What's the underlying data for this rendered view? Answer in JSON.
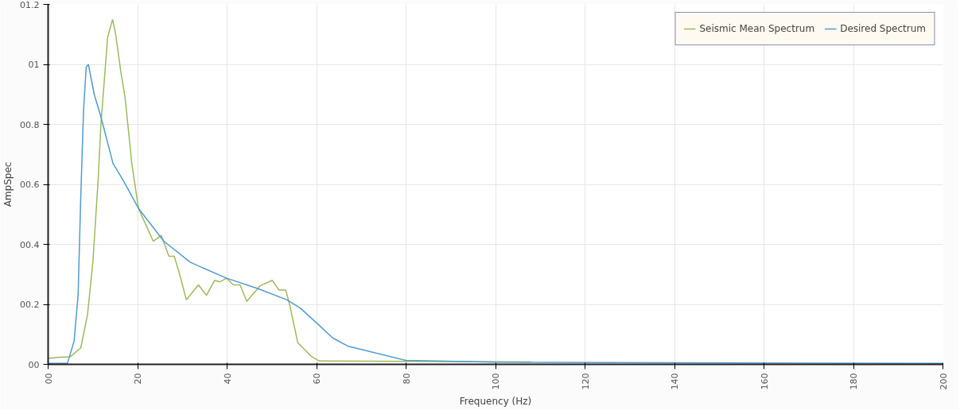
{
  "chart_data": {
    "type": "line",
    "xlabel": "Frequency (Hz)",
    "ylabel": "AmpSpec",
    "xlim": [
      0,
      200
    ],
    "ylim": [
      0,
      1.2
    ],
    "xticks": [
      {
        "value": 0,
        "label": "00"
      },
      20,
      40,
      60,
      80,
      100,
      120,
      140,
      160,
      180,
      200
    ],
    "yticks": [
      {
        "value": 0,
        "label": "00"
      },
      {
        "value": 0.2,
        "label": "00.2"
      },
      {
        "value": 0.4,
        "label": "00.4"
      },
      {
        "value": 0.6,
        "label": "00.6"
      },
      {
        "value": 0.8,
        "label": "00.8"
      },
      {
        "value": 1.0,
        "label": "01"
      },
      {
        "value": 1.2,
        "label": "01.2"
      }
    ],
    "grid": true,
    "legend": "top right",
    "marker": "none",
    "line_style": "solid",
    "series": [
      {
        "name": "Seismic Mean Spectrum",
        "color": "#9bbb59",
        "x": [
          0,
          2.8,
          4.9,
          7.3,
          8.8,
          10,
          11.2,
          11.8,
          13.3,
          14.4,
          15.1,
          16.3,
          17.2,
          18.7,
          20.2,
          22,
          23.5,
          25.3,
          27,
          28.2,
          29.4,
          30.9,
          33.6,
          35.4,
          37.2,
          38.4,
          39.9,
          41.4,
          42.9,
          44.4,
          47.4,
          50.1,
          51.6,
          53.1,
          54,
          55.8,
          58.8,
          60.6,
          80,
          108
        ],
        "values": [
          0.02,
          0.024,
          0.025,
          0.055,
          0.165,
          0.34,
          0.62,
          0.8,
          1.09,
          1.15,
          1.1,
          0.97,
          0.89,
          0.67,
          0.52,
          0.46,
          0.41,
          0.43,
          0.36,
          0.36,
          0.3,
          0.215,
          0.265,
          0.23,
          0.28,
          0.275,
          0.287,
          0.265,
          0.265,
          0.21,
          0.262,
          0.28,
          0.248,
          0.248,
          0.198,
          0.072,
          0.027,
          0.011,
          0.01,
          0.008
        ]
      },
      {
        "name": "Desired Spectrum",
        "color": "#4f9bd1",
        "x": [
          0,
          4.3,
          5.8,
          6.7,
          7.3,
          7.9,
          8.5,
          9.0,
          10.3,
          11.8,
          14.5,
          16.9,
          20.2,
          25.9,
          31.8,
          39.9,
          46.8,
          53.4,
          56.4,
          60,
          63.6,
          67.1,
          80,
          100,
          200
        ],
        "values": [
          0.003,
          0.003,
          0.077,
          0.23,
          0.56,
          0.84,
          0.99,
          1.0,
          0.9,
          0.825,
          0.67,
          0.61,
          0.52,
          0.41,
          0.34,
          0.287,
          0.253,
          0.215,
          0.187,
          0.138,
          0.088,
          0.06,
          0.013,
          0.007,
          0.003
        ]
      }
    ]
  }
}
